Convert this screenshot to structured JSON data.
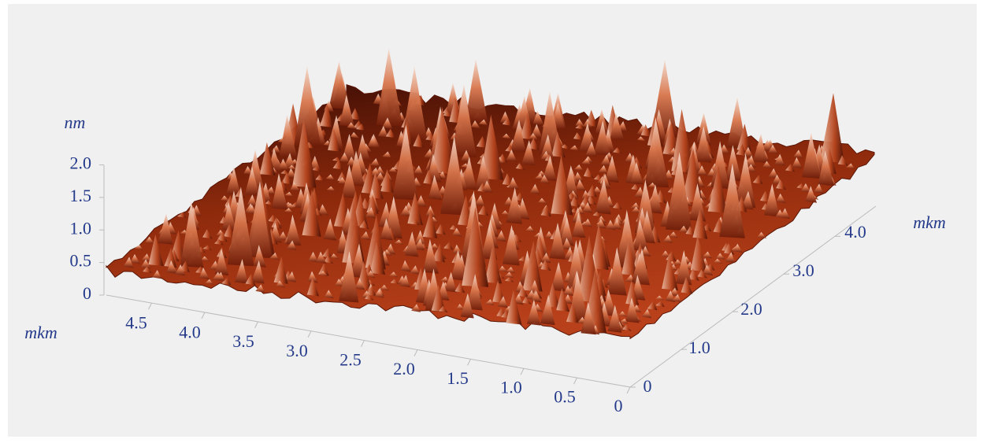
{
  "chart_data": {
    "type": "surface3d",
    "zlabel": "nm",
    "xlabel": "mkm",
    "ylabel": "mkm",
    "zlim": [
      0,
      2.2
    ],
    "zticks": [
      0,
      {
        "value": 0.5,
        "label": "0.5"
      },
      {
        "value": 1,
        "label": "1.0"
      },
      {
        "value": 1.5,
        "label": "1.5"
      },
      {
        "value": 2,
        "label": "2.0"
      }
    ],
    "xlim": [
      0,
      4.8
    ],
    "xticks": [
      0,
      0.5,
      {
        "value": 1,
        "label": "1.0"
      },
      1.5,
      {
        "value": 2,
        "label": "2.0"
      },
      2.5,
      {
        "value": 3,
        "label": "3.0"
      },
      3.5,
      {
        "value": 4,
        "label": "4.0"
      },
      4.5
    ],
    "ylim": [
      0,
      4.8
    ],
    "yticks": [
      0,
      {
        "value": 1,
        "label": "1.0"
      },
      {
        "value": 2,
        "label": "2.0"
      },
      {
        "value": 3,
        "label": "3.0"
      },
      {
        "value": 4,
        "label": "4.0"
      }
    ],
    "color": "#8a2a0e"
  }
}
